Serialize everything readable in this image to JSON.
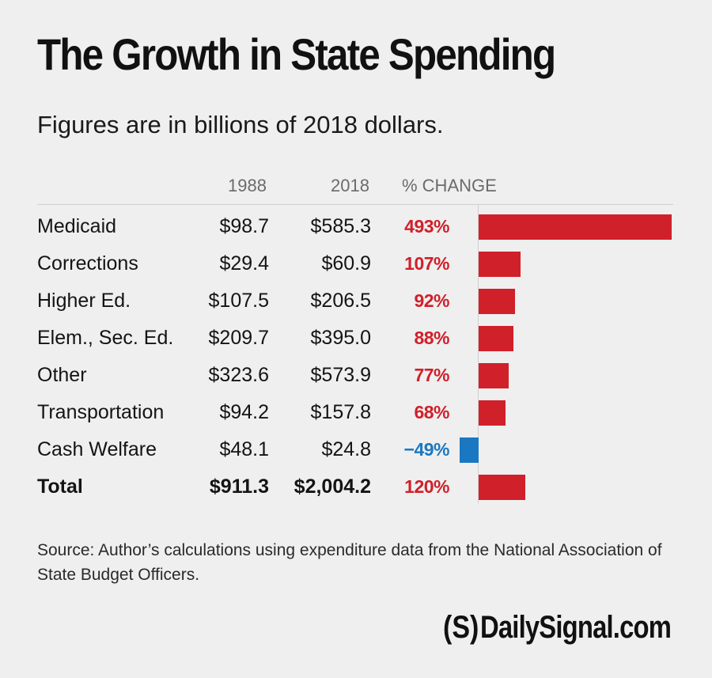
{
  "chart_data": {
    "type": "bar",
    "title": "The Growth in State Spending",
    "subtitle": "Figures are in billions of 2018 dollars.",
    "columns": [
      "1988",
      "2018",
      "% CHANGE"
    ],
    "rows": [
      {
        "label": "Medicaid",
        "v1988": "$98.7",
        "v2018": "$585.3",
        "pct_text": "493%",
        "pct": 493,
        "bold": false
      },
      {
        "label": "Corrections",
        "v1988": "$29.4",
        "v2018": "$60.9",
        "pct_text": "107%",
        "pct": 107,
        "bold": false
      },
      {
        "label": "Higher Ed.",
        "v1988": "$107.5",
        "v2018": "$206.5",
        "pct_text": "92%",
        "pct": 92,
        "bold": false
      },
      {
        "label": "Elem., Sec. Ed.",
        "v1988": "$209.7",
        "v2018": "$395.0",
        "pct_text": "88%",
        "pct": 88,
        "bold": false
      },
      {
        "label": "Other",
        "v1988": "$323.6",
        "v2018": "$573.9",
        "pct_text": "77%",
        "pct": 77,
        "bold": false
      },
      {
        "label": "Transportation",
        "v1988": "$94.2",
        "v2018": "$157.8",
        "pct_text": "68%",
        "pct": 68,
        "bold": false
      },
      {
        "label": "Cash Welfare",
        "v1988": "$48.1",
        "v2018": "$24.8",
        "pct_text": "−49%",
        "pct": -49,
        "bold": false
      },
      {
        "label": "Total",
        "v1988": "$911.3",
        "v2018": "$2,004.2",
        "pct_text": "120%",
        "pct": 120,
        "bold": true
      }
    ],
    "source": "Source: Author’s calculations using expenditure data from the National Association of State Budget Officers.",
    "colors": {
      "positive": "#d0202a",
      "negative": "#1a78c2"
    }
  },
  "logo": {
    "mark": "(S)",
    "text": "DailySignal.com"
  }
}
